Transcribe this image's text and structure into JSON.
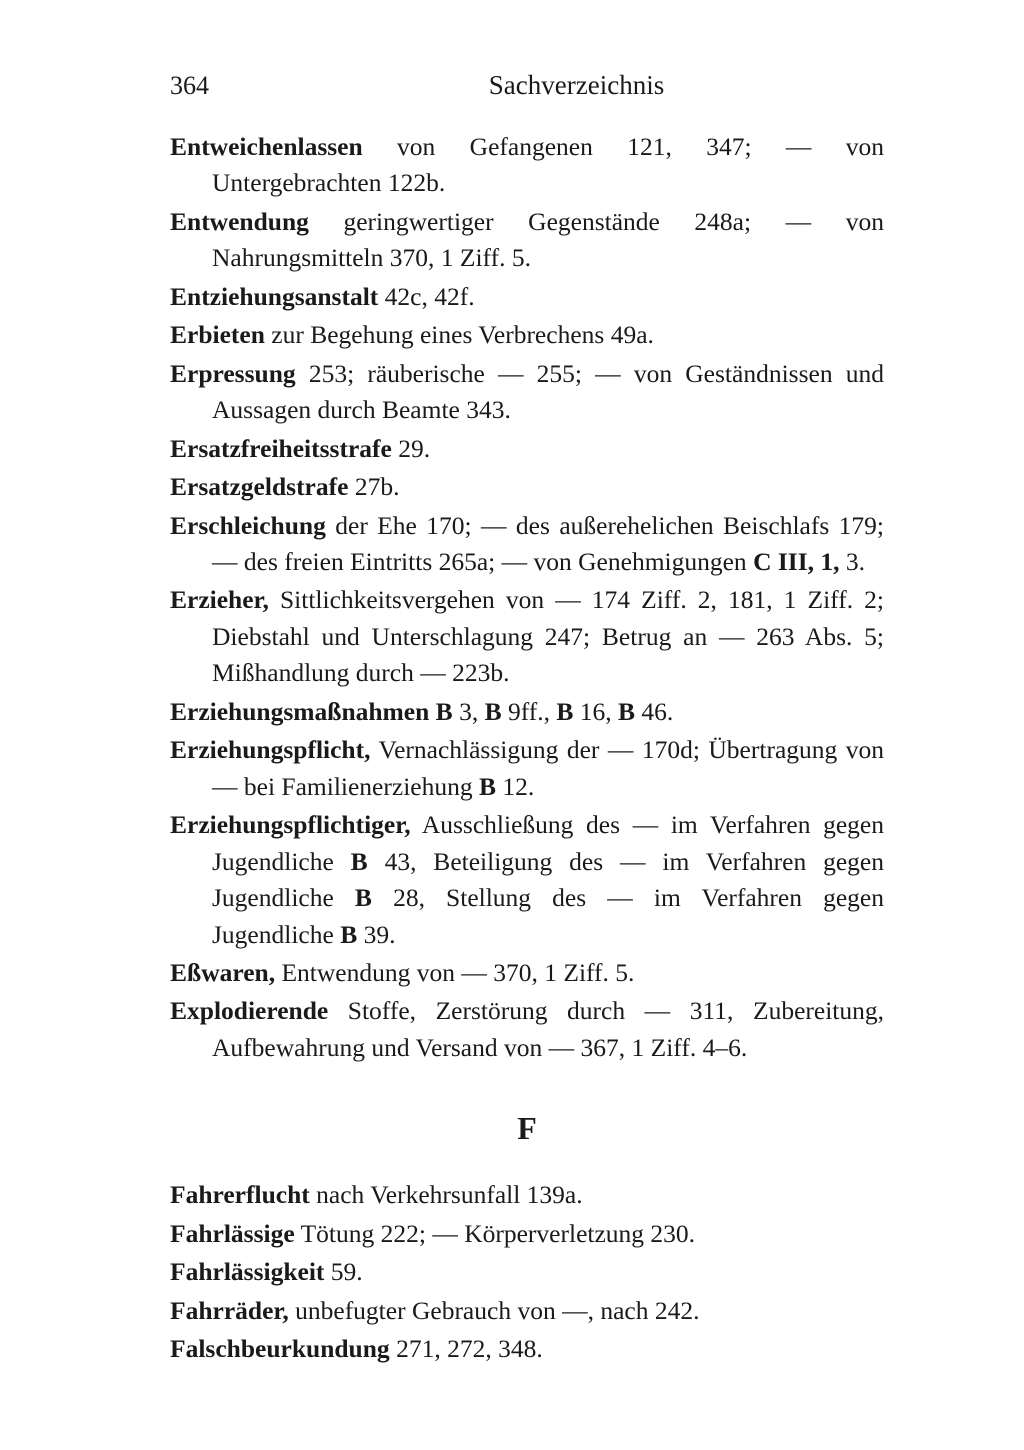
{
  "page_number": "364",
  "title": "Sachverzeichnis",
  "entries1": [
    {
      "term": "Entweichenlassen",
      "rest": " von Gefangenen 121, 347; — von Untergebrachten 122b."
    },
    {
      "term": "Entwendung",
      "rest": " geringwertiger Gegenstände 248a; — von Nahrungsmitteln 370, 1 Ziff. 5."
    },
    {
      "term": "Entziehungsanstalt",
      "rest": " 42c, 42f."
    },
    {
      "term": "Erbieten",
      "rest": " zur Begehung eines Verbrechens 49a."
    },
    {
      "term": "Erpressung",
      "rest": " 253; räuberische — 255; — von Geständnissen und Aussagen durch Beamte 343."
    },
    {
      "term": "Ersatzfreiheitsstrafe",
      "rest": " 29."
    },
    {
      "term": "Ersatzgeldstrafe",
      "rest": " 27b."
    }
  ],
  "entry_erschleichung": {
    "term": "Erschleichung",
    "p1": " der Ehe 170; — des außerehelichen Beischlafs 179; — des freien Eintritts 265a; — von Genehmigungen ",
    "b1": "C III, 1,",
    "p2": " 3."
  },
  "entry_erzieher": {
    "term": "Erzieher,",
    "rest": " Sittlichkeitsvergehen von — 174 Ziff. 2, 181, 1 Ziff. 2; Diebstahl und Unterschlagung 247; Betrug an — 263 Abs. 5; Mißhandlung durch — 223b."
  },
  "entry_erziehungsmassnahmen": {
    "term": "Erziehungsmaßnahmen",
    "b1": " B ",
    "n1": "3, ",
    "b2": "B ",
    "n2": "9ff., ",
    "b3": "B ",
    "n3": "16, ",
    "b4": "B ",
    "n4": "46."
  },
  "entry_erziehungspflicht": {
    "term": "Erziehungspflicht,",
    "p1": " Vernachlässigung der — 170d; Übertragung von — bei Familienerziehung ",
    "b1": "B ",
    "p2": "12."
  },
  "entry_erziehungspflichtiger": {
    "term": "Erziehungspflichtiger,",
    "p1": " Ausschließung des — im Verfahren gegen Jugendliche ",
    "b1": "B ",
    "p2": "43, Beteiligung des — im Verfahren gegen Jugendliche ",
    "b2": "B ",
    "p3": "28, Stellung des — im Verfahren gegen Jugendliche ",
    "b3": "B ",
    "p4": "39."
  },
  "entries2": [
    {
      "term": "Eßwaren,",
      "rest": " Entwendung von — 370, 1 Ziff. 5."
    },
    {
      "term": "Explodierende",
      "rest": " Stoffe, Zerstörung durch — 311, Zubereitung, Aufbewahrung und Versand von — 367, 1 Ziff. 4–6."
    }
  ],
  "letter": "F",
  "entries3": [
    {
      "term": "Fahrerflucht",
      "rest": " nach Verkehrsunfall 139a."
    },
    {
      "term": "Fahrlässige",
      "rest": " Tötung 222; — Körperverletzung 230."
    },
    {
      "term": "Fahrlässigkeit",
      "rest": " 59."
    },
    {
      "term": "Fahrräder,",
      "rest": " unbefugter Gebrauch von —, nach 242."
    },
    {
      "term": "Falschbeurkundung",
      "rest": " 271, 272, 348."
    }
  ]
}
